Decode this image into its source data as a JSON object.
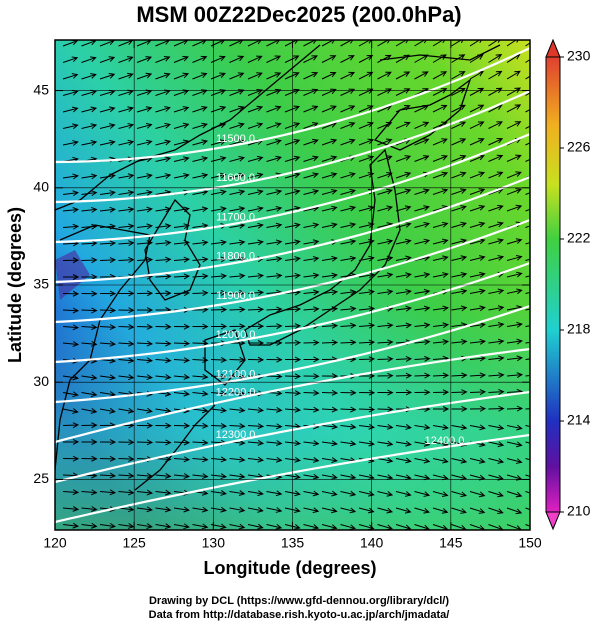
{
  "title": "MSM 00Z22Dec2025 (200.0hPa)",
  "x_axis": {
    "label": "Longitude (degrees)",
    "lim": [
      120,
      150
    ],
    "ticks": [
      120,
      125,
      130,
      135,
      140,
      145,
      150
    ]
  },
  "y_axis": {
    "label": "Latitude  (degrees)",
    "lim": [
      22.4,
      47.6
    ],
    "ticks": [
      25,
      30,
      35,
      40,
      45
    ]
  },
  "colorbar": {
    "lim": [
      210,
      230
    ],
    "ticks": [
      210,
      214,
      218,
      222,
      226,
      230
    ]
  },
  "contours": [
    {
      "value": 11500,
      "label": "11500.0"
    },
    {
      "value": 11600,
      "label": "11600.0"
    },
    {
      "value": 11700,
      "label": "11700.0"
    },
    {
      "value": 11800,
      "label": "11800.0"
    },
    {
      "value": 11900,
      "label": "11900.0"
    },
    {
      "value": 12000,
      "label": "12000.0"
    },
    {
      "value": 12100,
      "label": "12100.0"
    },
    {
      "value": 12200,
      "label": "12200.0"
    },
    {
      "value": 12300,
      "label": "12300.0"
    },
    {
      "value": 12400,
      "label": "12400.0"
    }
  ],
  "footer": [
    "Drawing by DCL (https://www.gfd-dennou.org/library/dcl/)",
    "Data from http://database.rish.kyoto-u.ac.jp/arch/jmadata/"
  ]
}
